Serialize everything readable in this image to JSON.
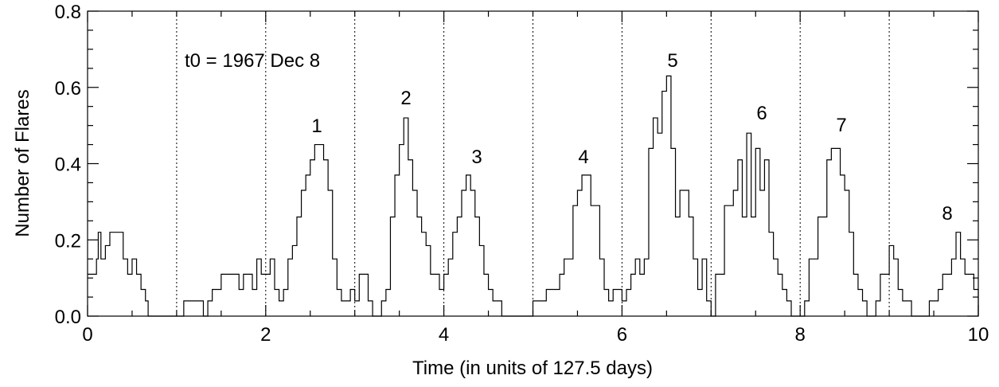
{
  "chart_data": {
    "type": "step-line",
    "xlabel": "Time (in units of 127.5 days)",
    "ylabel": "Number of Flares",
    "annotations": [
      "t0 = 1967 Dec 8",
      "1",
      "2",
      "3",
      "4",
      "5",
      "6",
      "7",
      "8"
    ],
    "color": "#000000",
    "x": [
      0.0,
      0.1,
      0.12,
      0.15,
      0.2,
      0.25,
      0.4,
      0.45,
      0.5,
      0.55,
      0.6,
      0.65,
      0.68,
      1.08,
      1.3,
      1.35,
      1.4,
      1.5,
      1.7,
      1.75,
      1.85,
      1.9,
      1.95,
      2.05,
      2.1,
      2.15,
      2.2,
      2.25,
      2.3,
      2.35,
      2.4,
      2.45,
      2.5,
      2.55,
      2.65,
      2.7,
      2.75,
      2.8,
      2.85,
      2.95,
      3.0,
      3.05,
      3.15,
      3.2,
      3.3,
      3.35,
      3.4,
      3.45,
      3.5,
      3.55,
      3.6,
      3.65,
      3.7,
      3.75,
      3.8,
      3.85,
      3.95,
      4.0,
      4.05,
      4.1,
      4.15,
      4.2,
      4.25,
      4.3,
      4.35,
      4.4,
      4.45,
      4.5,
      4.55,
      4.65,
      5.0,
      5.15,
      5.3,
      5.35,
      5.45,
      5.5,
      5.55,
      5.65,
      5.75,
      5.8,
      5.85,
      5.9,
      6.0,
      6.05,
      6.1,
      6.15,
      6.2,
      6.25,
      6.3,
      6.35,
      6.4,
      6.45,
      6.5,
      6.55,
      6.6,
      6.65,
      6.75,
      6.8,
      6.85,
      6.9,
      6.95,
      7.0,
      7.05,
      7.15,
      7.25,
      7.3,
      7.35,
      7.4,
      7.45,
      7.5,
      7.55,
      7.6,
      7.65,
      7.7,
      7.75,
      7.8,
      7.85,
      7.9,
      8.05,
      8.1,
      8.2,
      8.3,
      8.35,
      8.45,
      8.5,
      8.55,
      8.6,
      8.65,
      8.7,
      8.75,
      8.85,
      8.9,
      9.0,
      9.05,
      9.1,
      9.15,
      9.25,
      9.45,
      9.55,
      9.6,
      9.7,
      9.75,
      9.8,
      9.85,
      9.95,
      10.0
    ],
    "values": [
      0.11,
      0.15,
      0.22,
      0.15,
      0.185,
      0.22,
      0.15,
      0.11,
      0.15,
      0.11,
      0.07,
      0.04,
      0.0,
      0.04,
      0.0,
      0.04,
      0.07,
      0.11,
      0.07,
      0.11,
      0.07,
      0.15,
      0.11,
      0.15,
      0.07,
      0.04,
      0.07,
      0.15,
      0.185,
      0.26,
      0.33,
      0.37,
      0.41,
      0.45,
      0.41,
      0.33,
      0.15,
      0.07,
      0.04,
      0.07,
      0.04,
      0.11,
      0.04,
      0.0,
      0.04,
      0.07,
      0.26,
      0.37,
      0.45,
      0.52,
      0.41,
      0.33,
      0.26,
      0.22,
      0.185,
      0.11,
      0.07,
      0.11,
      0.15,
      0.22,
      0.26,
      0.33,
      0.37,
      0.33,
      0.26,
      0.185,
      0.11,
      0.07,
      0.04,
      0.0,
      0.04,
      0.07,
      0.11,
      0.15,
      0.29,
      0.33,
      0.37,
      0.29,
      0.15,
      0.07,
      0.04,
      0.07,
      0.04,
      0.07,
      0.11,
      0.15,
      0.11,
      0.15,
      0.44,
      0.52,
      0.48,
      0.59,
      0.63,
      0.44,
      0.26,
      0.33,
      0.26,
      0.15,
      0.07,
      0.15,
      0.04,
      0.0,
      0.11,
      0.29,
      0.33,
      0.41,
      0.26,
      0.48,
      0.26,
      0.44,
      0.33,
      0.41,
      0.22,
      0.15,
      0.11,
      0.07,
      0.04,
      0.0,
      0.04,
      0.15,
      0.26,
      0.41,
      0.44,
      0.37,
      0.33,
      0.22,
      0.11,
      0.07,
      0.04,
      0.0,
      0.04,
      0.11,
      0.185,
      0.15,
      0.07,
      0.04,
      0.0,
      0.04,
      0.07,
      0.11,
      0.15,
      0.22,
      0.15,
      0.11,
      0.07,
      0.0
    ],
    "xlim": [
      0,
      10
    ],
    "ylim": [
      0,
      0.8
    ],
    "xticks": [
      0,
      2,
      4,
      6,
      8,
      10
    ],
    "yticks": [
      {
        "value": 0,
        "label": "0.0"
      },
      0.2,
      0.4,
      0.6,
      0.8
    ],
    "xminorticks": [
      0.5,
      1,
      1.5,
      2.5,
      3,
      3.5,
      4.5,
      5,
      5.5,
      6.5,
      7,
      7.5,
      8.5,
      9,
      9.5
    ],
    "yminorticks": [
      0.05,
      0.1,
      0.15,
      0.25,
      0.3,
      0.35,
      0.45,
      0.5,
      0.55,
      0.65,
      0.7,
      0.75
    ],
    "vlines": [
      1,
      2,
      3,
      4,
      5,
      6,
      7,
      8,
      9
    ]
  }
}
